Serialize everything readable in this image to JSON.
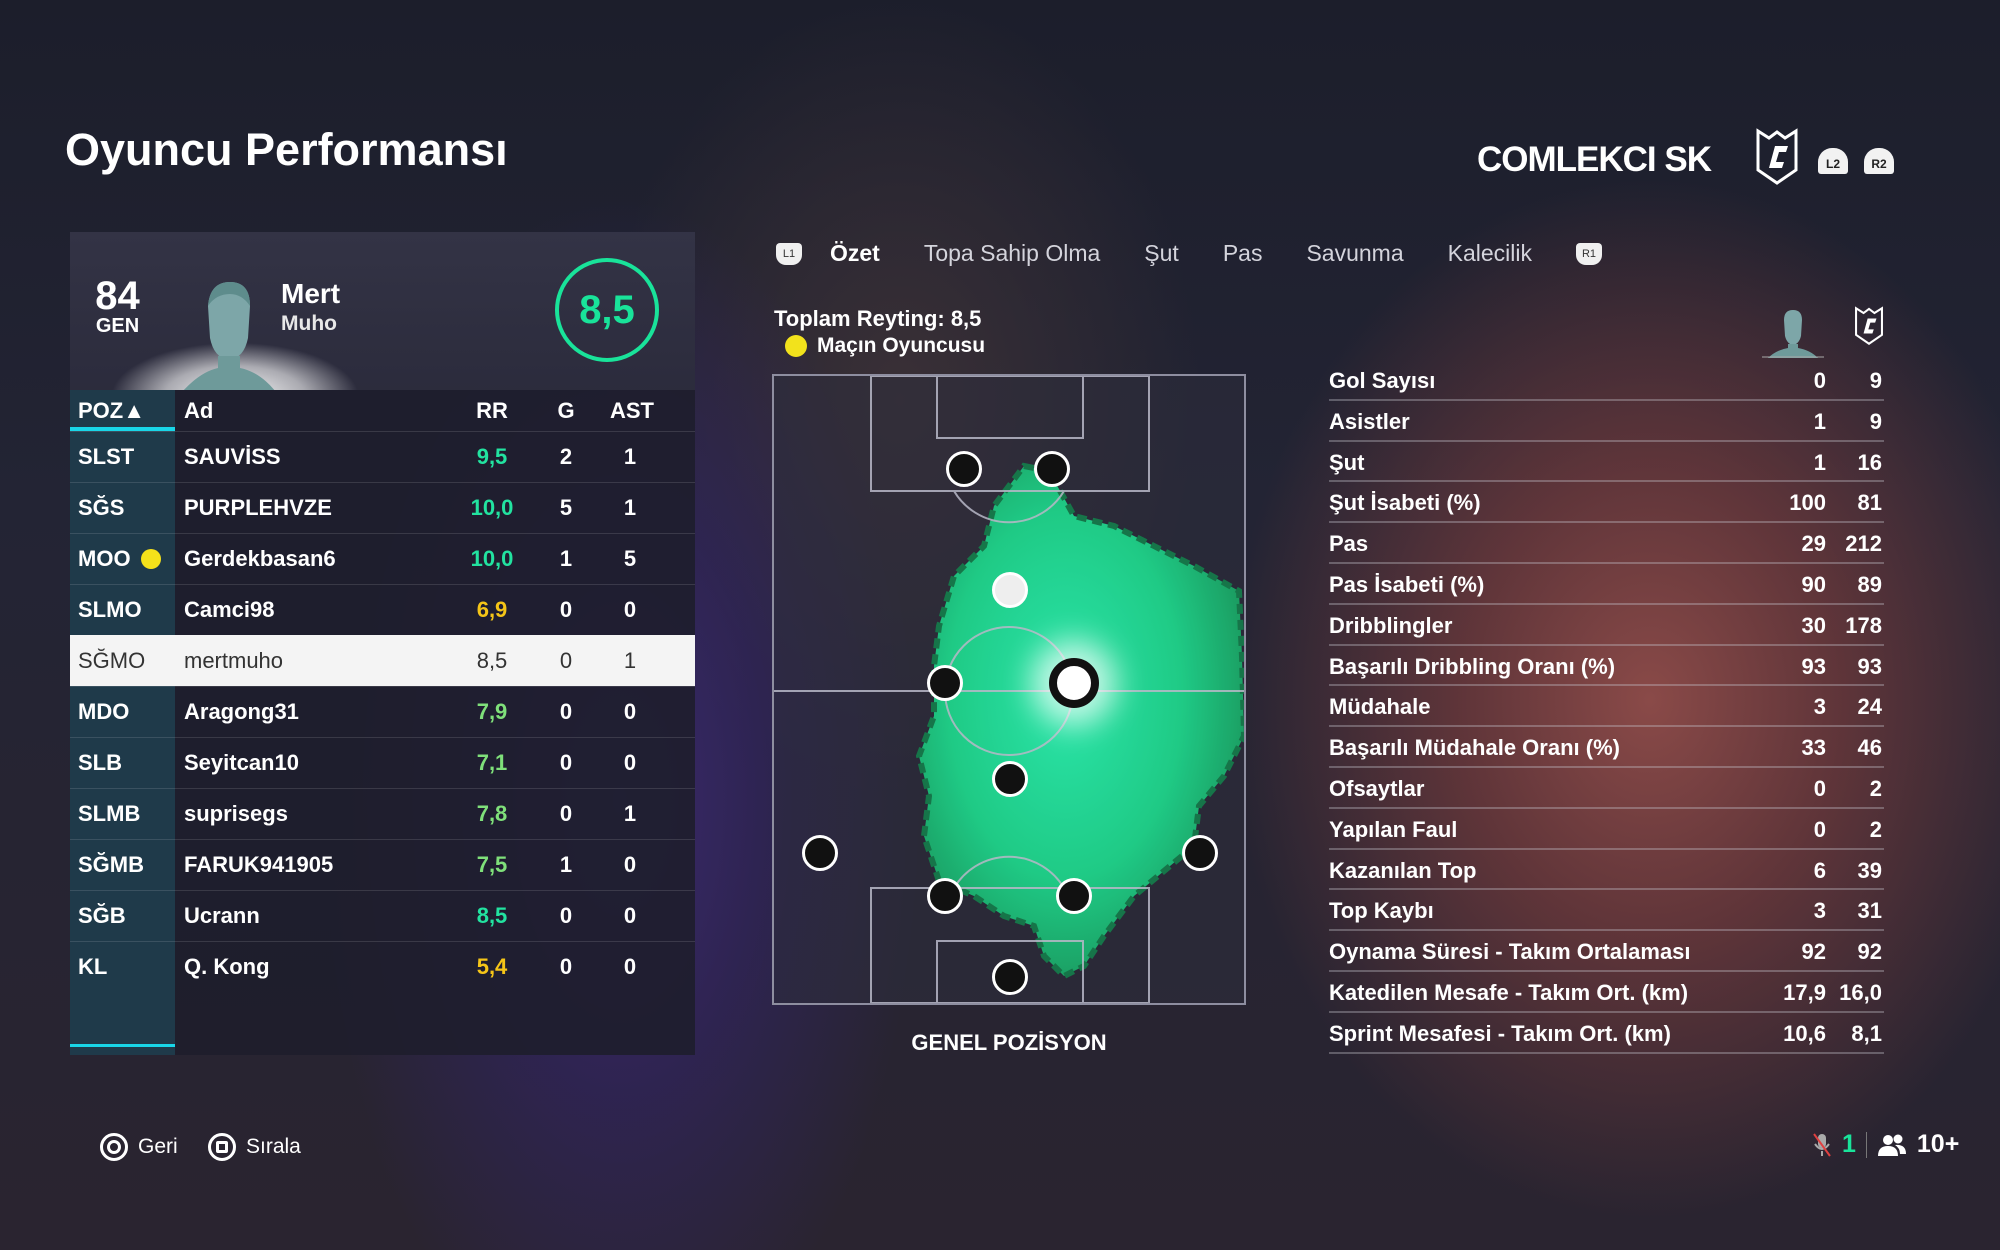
{
  "header": {
    "title": "Oyuncu Performansı",
    "team": "COMLEKCI SK",
    "l2": "L2",
    "r2": "R2"
  },
  "player": {
    "overall": "84",
    "overall_label": "GEN",
    "first_name": "Mert",
    "last_name": "Muho",
    "rating": "8,5"
  },
  "squad": {
    "columns": {
      "pos": "POZ▲",
      "name": "Ad",
      "rr": "RR",
      "g": "G",
      "ast": "AST"
    },
    "rows": [
      {
        "pos": "SLST",
        "name": "SAUVİSS",
        "rr": "9,5",
        "g": "2",
        "ast": "1",
        "rr_color": "#22e3a0"
      },
      {
        "pos": "SĞS",
        "name": "PURPLEHVZE",
        "rr": "10,0",
        "g": "5",
        "ast": "1",
        "rr_color": "#22e3a0"
      },
      {
        "pos": "MOO",
        "name": "Gerdekbasan6",
        "rr": "10,0",
        "g": "1",
        "ast": "5",
        "rr_color": "#22e3a0",
        "motm": true
      },
      {
        "pos": "SLMO",
        "name": "Camci98",
        "rr": "6,9",
        "g": "0",
        "ast": "0",
        "rr_color": "#f5c518"
      },
      {
        "pos": "SĞMO",
        "name": "mertmuho",
        "rr": "8,5",
        "g": "0",
        "ast": "1",
        "rr_color": "#333333",
        "selected": true
      },
      {
        "pos": "MDO",
        "name": "Aragong31",
        "rr": "7,9",
        "g": "0",
        "ast": "0",
        "rr_color": "#7fe07a"
      },
      {
        "pos": "SLB",
        "name": "Seyitcan10",
        "rr": "7,1",
        "g": "0",
        "ast": "0",
        "rr_color": "#7fe07a"
      },
      {
        "pos": "SLMB",
        "name": "suprisegs",
        "rr": "7,8",
        "g": "0",
        "ast": "1",
        "rr_color": "#7fe07a"
      },
      {
        "pos": "SĞMB",
        "name": "FARUK941905",
        "rr": "7,5",
        "g": "1",
        "ast": "0",
        "rr_color": "#7fe07a"
      },
      {
        "pos": "SĞB",
        "name": "Ucrann",
        "rr": "8,5",
        "g": "0",
        "ast": "0",
        "rr_color": "#22e3a0"
      },
      {
        "pos": "KL",
        "name": "Q. Kong",
        "rr": "5,4",
        "g": "0",
        "ast": "0",
        "rr_color": "#f5c518"
      }
    ]
  },
  "tabs": {
    "l1": "L1",
    "r1": "R1",
    "items": [
      "Özet",
      "Topa Sahip Olma",
      "Şut",
      "Pas",
      "Savunma",
      "Kalecilik"
    ],
    "active": 0
  },
  "summary": {
    "total_rating": "Toplam Reyting: 8,5",
    "motm": "Maçın Oyuncusu",
    "pitch_label": "GENEL POZİSYON"
  },
  "stats": [
    {
      "label": "Gol Sayısı",
      "player": "0",
      "team": "9"
    },
    {
      "label": "Asistler",
      "player": "1",
      "team": "9"
    },
    {
      "label": "Şut",
      "player": "1",
      "team": "16"
    },
    {
      "label": "Şut İsabeti (%)",
      "player": "100",
      "team": "81"
    },
    {
      "label": "Pas",
      "player": "29",
      "team": "212"
    },
    {
      "label": "Pas İsabeti (%)",
      "player": "90",
      "team": "89"
    },
    {
      "label": "Dribblingler",
      "player": "30",
      "team": "178"
    },
    {
      "label": "Başarılı Dribbling Oranı (%)",
      "player": "93",
      "team": "93"
    },
    {
      "label": "Müdahale",
      "player": "3",
      "team": "24"
    },
    {
      "label": "Başarılı Müdahale Oranı (%)",
      "player": "33",
      "team": "46"
    },
    {
      "label": "Ofsaytlar",
      "player": "0",
      "team": "2"
    },
    {
      "label": "Yapılan Faul",
      "player": "0",
      "team": "2"
    },
    {
      "label": "Kazanılan Top",
      "player": "6",
      "team": "39"
    },
    {
      "label": "Top Kaybı",
      "player": "3",
      "team": "31"
    },
    {
      "label": "Oynama Süresi - Takım Ortalaması",
      "player": "92",
      "team": "92"
    },
    {
      "label": "Katedilen Mesafe - Takım Ort. (km)",
      "player": "17,9",
      "team": "16,0"
    },
    {
      "label": "Sprint Mesafesi - Takım Ort. (km)",
      "player": "10,6",
      "team": "8,1"
    }
  ],
  "footer": {
    "back": "Geri",
    "sort": "Sırala",
    "mic_count": "1",
    "party": "10+"
  },
  "colors": {
    "accent": "#19e39a",
    "heatmap": "#1fd38a",
    "selected_row": "#f4f4f4",
    "pos_column": "#1f3a4a"
  }
}
